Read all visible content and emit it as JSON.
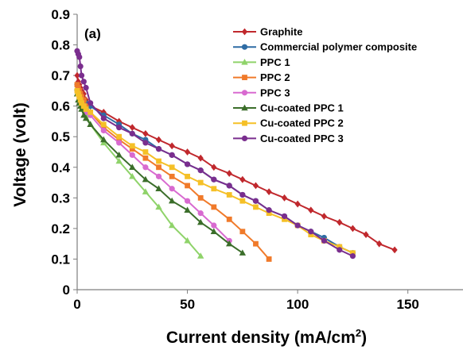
{
  "chart_data": {
    "type": "line",
    "panel_label": "(a)",
    "xlabel": "Current  density (mA/cm",
    "xlabel_sup": "2",
    "xlabel_end": ")",
    "ylabel": "Voltage (volt)",
    "xlim": [
      0,
      175
    ],
    "ylim": [
      0,
      0.9
    ],
    "xticks": [
      "0",
      "50",
      "100",
      "150"
    ],
    "yticks": [
      "0",
      "0.1",
      "0.2",
      "0.3",
      "0.4",
      "0.5",
      "0.6",
      "0.7",
      "0.8",
      "0.9"
    ],
    "grid": false,
    "legend_position": "top-right",
    "series": [
      {
        "name": "Graphite",
        "color": "#c0282d",
        "marker": "diamond",
        "x": [
          0,
          0.5,
          1,
          1.5,
          2,
          3,
          4,
          6,
          12,
          19,
          25,
          31,
          37,
          43,
          50,
          56,
          62,
          69,
          75,
          81,
          87,
          94,
          100,
          106,
          112,
          119,
          125,
          131,
          137,
          144
        ],
        "y": [
          0.7,
          0.68,
          0.67,
          0.66,
          0.65,
          0.64,
          0.62,
          0.6,
          0.58,
          0.55,
          0.53,
          0.51,
          0.49,
          0.47,
          0.45,
          0.43,
          0.4,
          0.38,
          0.36,
          0.34,
          0.32,
          0.3,
          0.28,
          0.26,
          0.24,
          0.22,
          0.2,
          0.18,
          0.15,
          0.13
        ]
      },
      {
        "name": "Commercial polymer composite",
        "color": "#2e6ca4",
        "marker": "circle",
        "x": [
          0,
          0.5,
          1,
          1.5,
          2,
          3,
          4,
          6,
          12,
          19,
          25,
          31,
          37,
          43,
          50,
          56,
          62,
          69,
          75,
          81,
          87,
          94,
          100,
          106,
          112,
          119,
          125
        ],
        "y": [
          0.67,
          0.66,
          0.65,
          0.64,
          0.63,
          0.62,
          0.61,
          0.6,
          0.57,
          0.54,
          0.51,
          0.49,
          0.46,
          0.44,
          0.41,
          0.39,
          0.36,
          0.34,
          0.31,
          0.29,
          0.26,
          0.24,
          0.21,
          0.19,
          0.17,
          0.14,
          0.12
        ]
      },
      {
        "name": "PPC 1",
        "color": "#8fd36a",
        "marker": "triangle",
        "x": [
          0,
          0.5,
          1,
          1.5,
          2,
          3,
          4,
          6,
          12,
          19,
          25,
          31,
          37,
          43,
          50,
          56
        ],
        "y": [
          0.66,
          0.64,
          0.63,
          0.62,
          0.61,
          0.59,
          0.57,
          0.54,
          0.48,
          0.42,
          0.37,
          0.32,
          0.27,
          0.21,
          0.16,
          0.11
        ]
      },
      {
        "name": "PPC 2",
        "color": "#f07a2a",
        "marker": "square",
        "x": [
          0,
          0.5,
          1,
          1.5,
          2,
          3,
          4,
          6,
          12,
          19,
          25,
          31,
          37,
          43,
          50,
          56,
          62,
          69,
          75,
          81,
          87
        ],
        "y": [
          0.67,
          0.66,
          0.65,
          0.64,
          0.63,
          0.62,
          0.6,
          0.58,
          0.53,
          0.49,
          0.46,
          0.43,
          0.4,
          0.37,
          0.34,
          0.3,
          0.27,
          0.23,
          0.19,
          0.15,
          0.1
        ]
      },
      {
        "name": "PPC 3",
        "color": "#d86ad0",
        "marker": "circle",
        "x": [
          0,
          0.5,
          1,
          1.5,
          2,
          3,
          4,
          6,
          12,
          19,
          25,
          31,
          37,
          43,
          50,
          56,
          62,
          69
        ],
        "y": [
          0.65,
          0.64,
          0.63,
          0.62,
          0.61,
          0.6,
          0.58,
          0.57,
          0.52,
          0.48,
          0.44,
          0.4,
          0.37,
          0.33,
          0.29,
          0.25,
          0.21,
          0.16
        ]
      },
      {
        "name": "Cu-coated PPC 1",
        "color": "#3b6e2a",
        "marker": "triangle",
        "x": [
          0,
          0.5,
          1,
          1.5,
          2,
          3,
          4,
          6,
          12,
          19,
          25,
          31,
          37,
          43,
          50,
          56,
          62,
          69,
          75
        ],
        "y": [
          0.64,
          0.62,
          0.61,
          0.6,
          0.59,
          0.57,
          0.56,
          0.54,
          0.49,
          0.44,
          0.4,
          0.36,
          0.33,
          0.29,
          0.26,
          0.22,
          0.19,
          0.15,
          0.12
        ]
      },
      {
        "name": "Cu-coated PPC 2",
        "color": "#f5c027",
        "marker": "square",
        "x": [
          0,
          0.5,
          1,
          1.5,
          2,
          3,
          4,
          6,
          12,
          19,
          25,
          31,
          37,
          43,
          50,
          56,
          62,
          69,
          75,
          81,
          87,
          94,
          100,
          106,
          112,
          119,
          125
        ],
        "y": [
          0.65,
          0.64,
          0.63,
          0.62,
          0.61,
          0.6,
          0.59,
          0.58,
          0.54,
          0.5,
          0.47,
          0.45,
          0.42,
          0.4,
          0.37,
          0.35,
          0.33,
          0.31,
          0.29,
          0.27,
          0.25,
          0.23,
          0.21,
          0.18,
          0.16,
          0.14,
          0.12
        ]
      },
      {
        "name": "Cu-coated PPC 3",
        "color": "#7a2e8e",
        "marker": "circle",
        "x": [
          0,
          0.5,
          1,
          1.5,
          2,
          3,
          4,
          6,
          12,
          19,
          25,
          31,
          37,
          43,
          50,
          56,
          62,
          69,
          75,
          81,
          87,
          94,
          100,
          106,
          112,
          119,
          125
        ],
        "y": [
          0.78,
          0.77,
          0.76,
          0.73,
          0.7,
          0.68,
          0.66,
          0.61,
          0.56,
          0.53,
          0.51,
          0.48,
          0.46,
          0.44,
          0.41,
          0.39,
          0.36,
          0.34,
          0.31,
          0.29,
          0.26,
          0.24,
          0.21,
          0.19,
          0.16,
          0.13,
          0.11
        ]
      }
    ]
  }
}
